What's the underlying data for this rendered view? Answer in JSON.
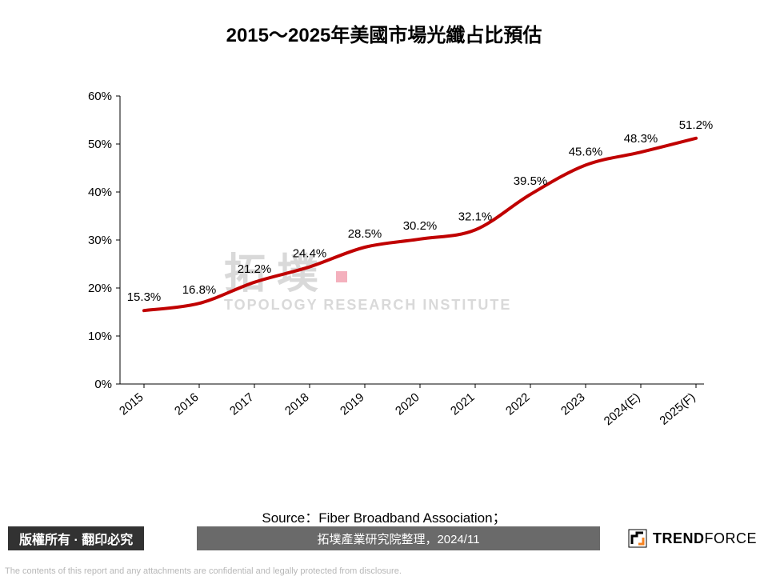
{
  "title": {
    "text": "2015～2025年美國市場光纖占比預估",
    "fontsize": 24,
    "color": "#000000"
  },
  "chart": {
    "type": "line",
    "background_color": "#ffffff",
    "line_color": "#c00000",
    "line_width": 4,
    "x_categories": [
      "2015",
      "2016",
      "2017",
      "2018",
      "2019",
      "2020",
      "2021",
      "2022",
      "2023",
      "2024(E)",
      "2025(F)"
    ],
    "values": [
      15.3,
      16.8,
      21.2,
      24.4,
      28.5,
      30.2,
      32.1,
      39.5,
      45.6,
      48.3,
      51.2
    ],
    "data_label_suffix": "%",
    "data_label_fontsize": 15,
    "y_axis": {
      "min": 0,
      "max": 60,
      "tick_step": 10,
      "tick_suffix": "%",
      "label_fontsize": 15
    },
    "x_axis": {
      "label_fontsize": 15,
      "label_rotation_deg": -40
    },
    "axis_color": "#000000",
    "smoothing": true
  },
  "watermark": {
    "cjk": "拓墣",
    "en": "TOPOLOGY RESEARCH INSTITUTE",
    "color": "#d9d9d9",
    "accent_color": "#f4b0bd"
  },
  "source": {
    "line1": "Source：Fiber Broadband Association；",
    "line2": "拓墣產業研究院整理，2024/11",
    "fontsize": 17,
    "color": "#000000",
    "line2_color": "#ffffff"
  },
  "footer": {
    "copyright": "版權所有 · 翻印必究",
    "dark_bg": "#323232",
    "mid_bg": "#6a6a6a",
    "logo_text_main": "TREND",
    "logo_text_sub": "FORCE",
    "logo_color": "#000000",
    "logo_accent": "#f58220"
  },
  "disclaimer": {
    "text": "The contents of this report and any attachments are confidential and legally protected from disclosure.",
    "color": "#b7b7b7",
    "fontsize": 11
  }
}
